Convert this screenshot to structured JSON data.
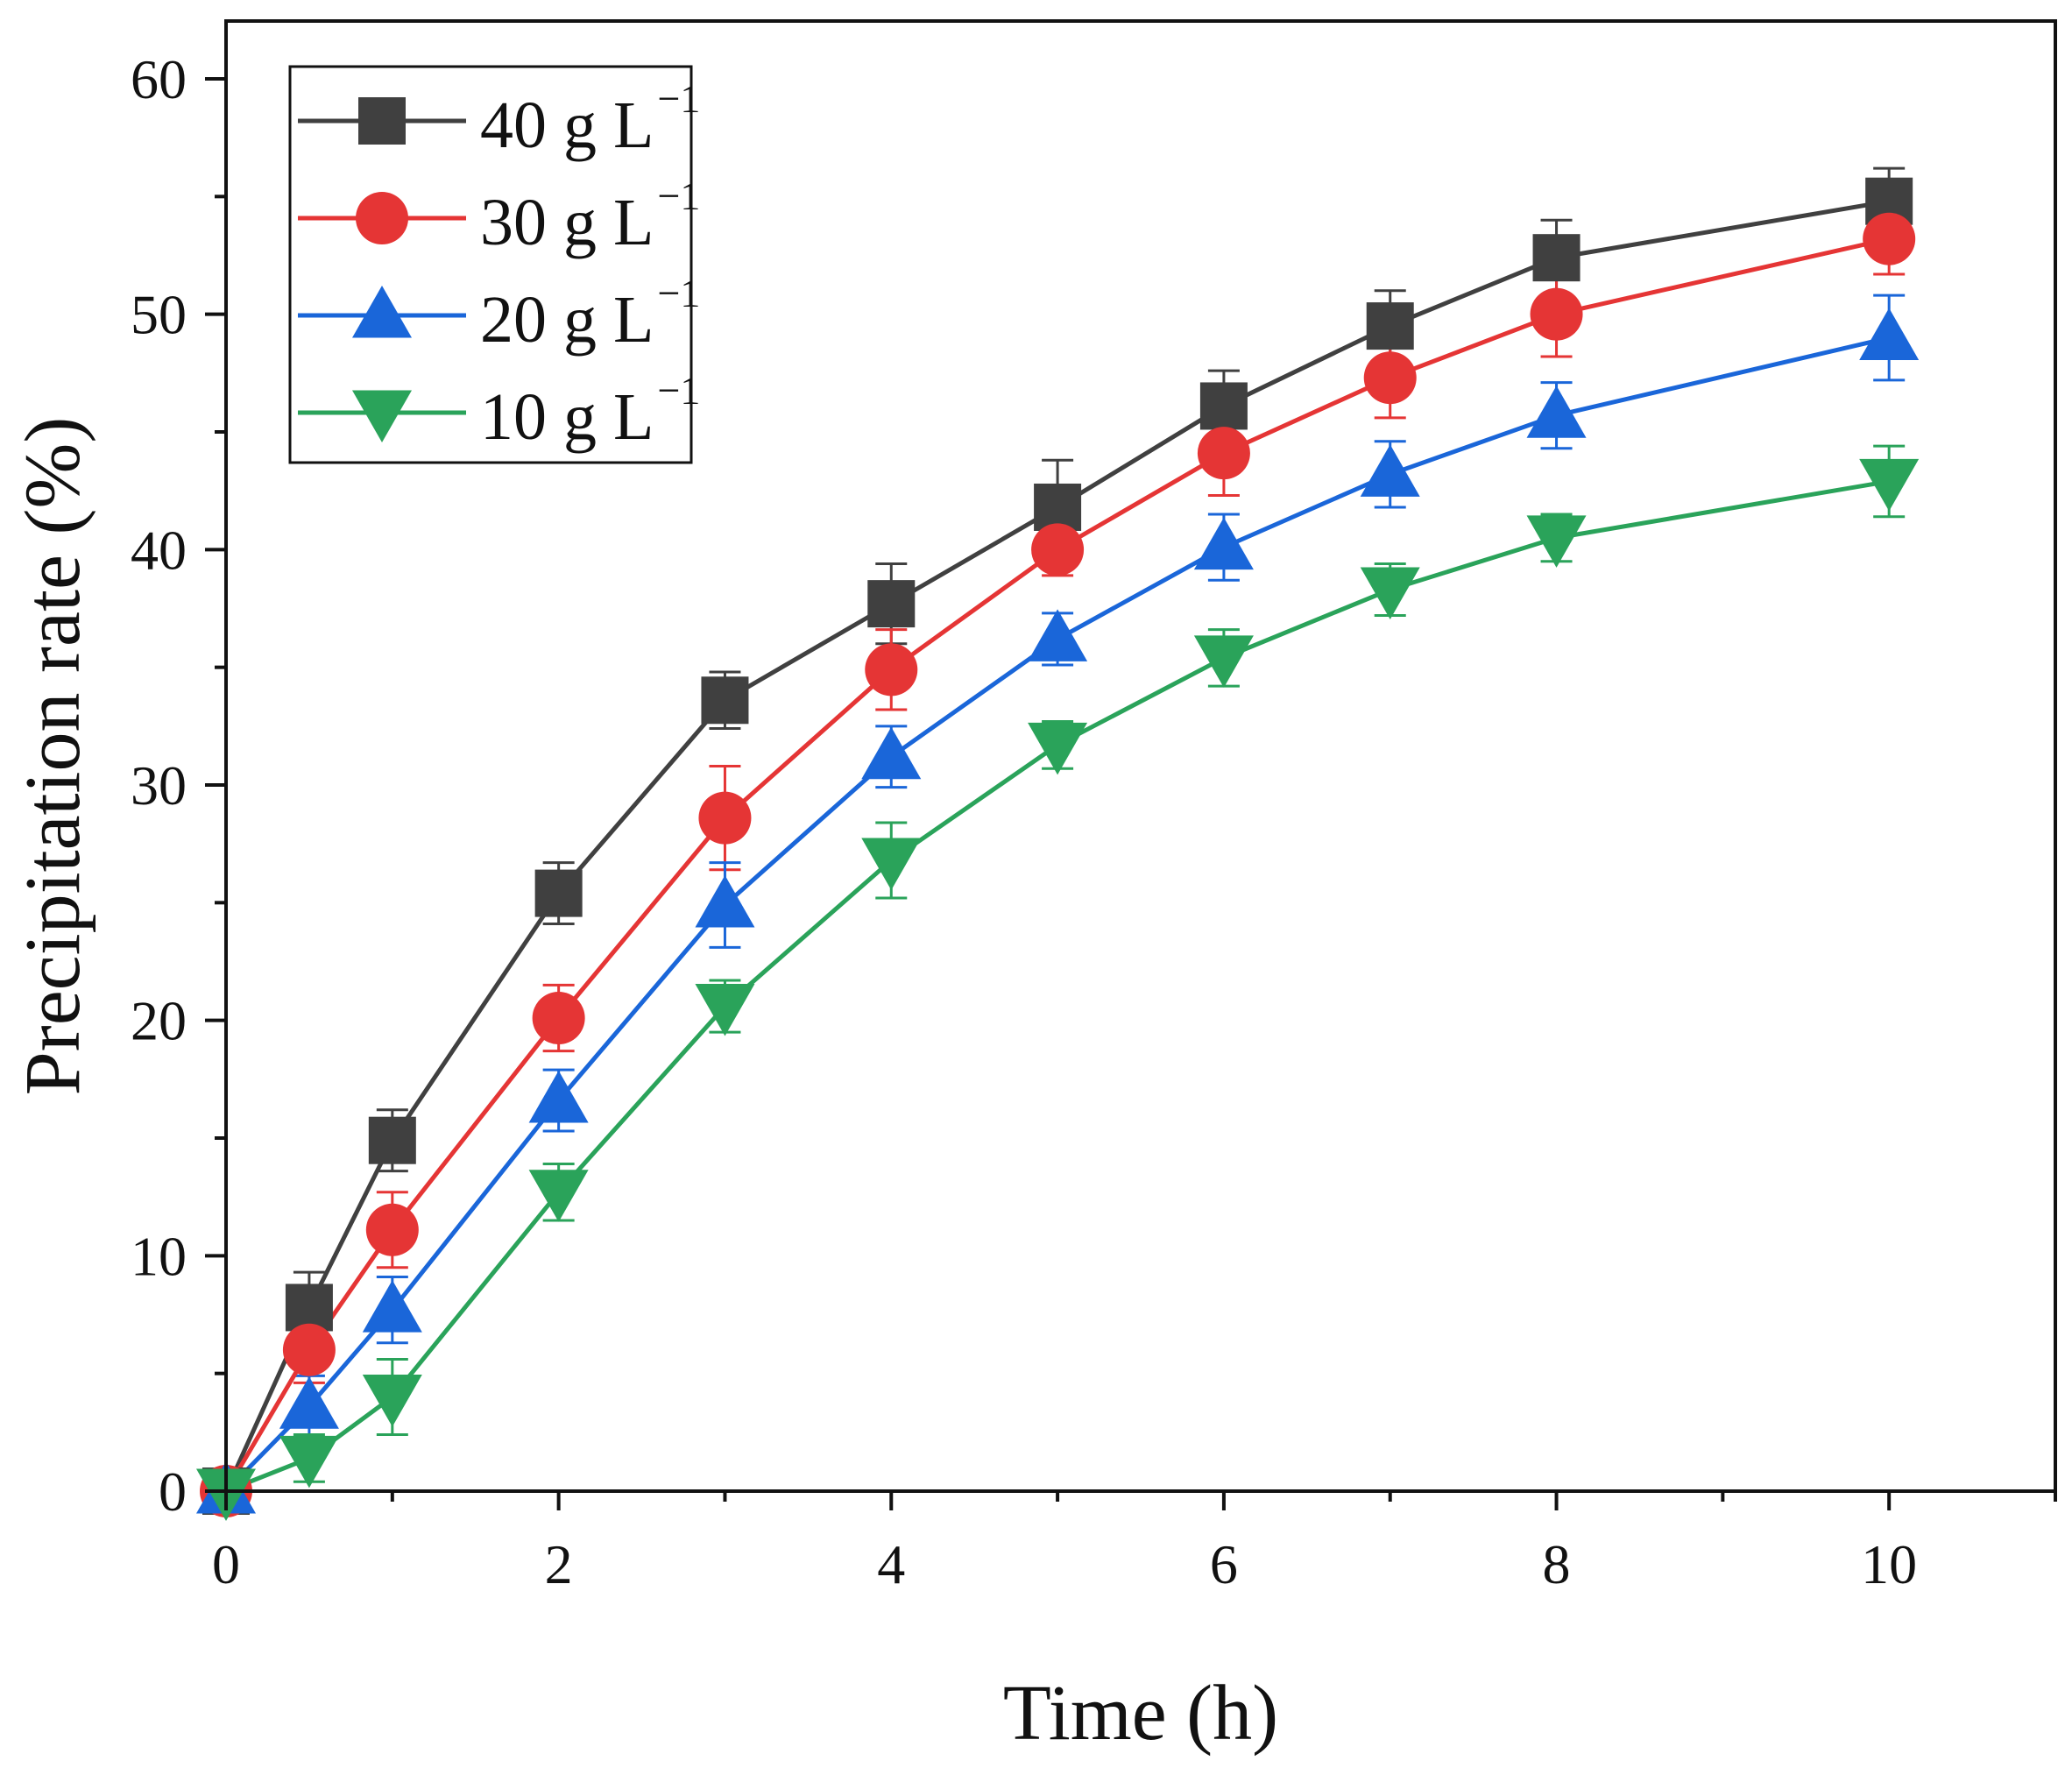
{
  "chart_data": {
    "type": "line",
    "title": "",
    "xlabel": "Time (h)",
    "ylabel": "Precipitation rate (%)",
    "xlim": [
      0,
      11
    ],
    "ylim": [
      0,
      60
    ],
    "xticks": [
      0,
      2,
      4,
      6,
      8,
      10
    ],
    "yticks": [
      0,
      10,
      20,
      30,
      40,
      50,
      60
    ],
    "grid": false,
    "legend_position": "top-left",
    "x": [
      0,
      0.5,
      1,
      2,
      3,
      4,
      5,
      6,
      7,
      8,
      10
    ],
    "series": [
      {
        "name": "40 g L",
        "unit_superscript": "−1",
        "color": "#404040",
        "marker": "square",
        "values": [
          0,
          7.8,
          14.9,
          25.4,
          33.6,
          37.7,
          41.8,
          46.1,
          49.5,
          52.4,
          54.8
        ],
        "errors": [
          0,
          1.5,
          1.3,
          1.3,
          1.2,
          1.7,
          2.0,
          1.5,
          1.5,
          1.6,
          1.4
        ]
      },
      {
        "name": "30 g L",
        "unit_superscript": "−1",
        "color": "#e53535",
        "marker": "circle",
        "values": [
          0,
          6.0,
          11.1,
          20.1,
          28.6,
          34.9,
          40.0,
          44.1,
          47.3,
          50.0,
          53.2
        ],
        "errors": [
          0,
          1.4,
          1.6,
          1.4,
          2.2,
          1.7,
          1.1,
          1.8,
          1.7,
          1.8,
          1.5
        ]
      },
      {
        "name": "20 g L",
        "unit_superscript": "−1",
        "color": "#1a66d9",
        "marker": "triangle-up",
        "values": [
          0,
          3.6,
          7.7,
          16.6,
          24.9,
          31.2,
          36.2,
          40.1,
          43.2,
          45.7,
          49.0
        ],
        "errors": [
          0,
          1.3,
          1.4,
          1.3,
          1.8,
          1.3,
          1.1,
          1.4,
          1.4,
          1.4,
          1.8
        ]
      },
      {
        "name": "10 g L",
        "unit_superscript": "−1",
        "color": "#2aa35a",
        "marker": "triangle-down",
        "values": [
          0,
          1.4,
          4.0,
          12.7,
          20.6,
          26.8,
          31.7,
          35.4,
          38.3,
          40.5,
          42.9
        ],
        "errors": [
          0,
          1.0,
          1.6,
          1.2,
          1.1,
          1.6,
          1.0,
          1.2,
          1.1,
          1.0,
          1.5
        ]
      }
    ]
  }
}
